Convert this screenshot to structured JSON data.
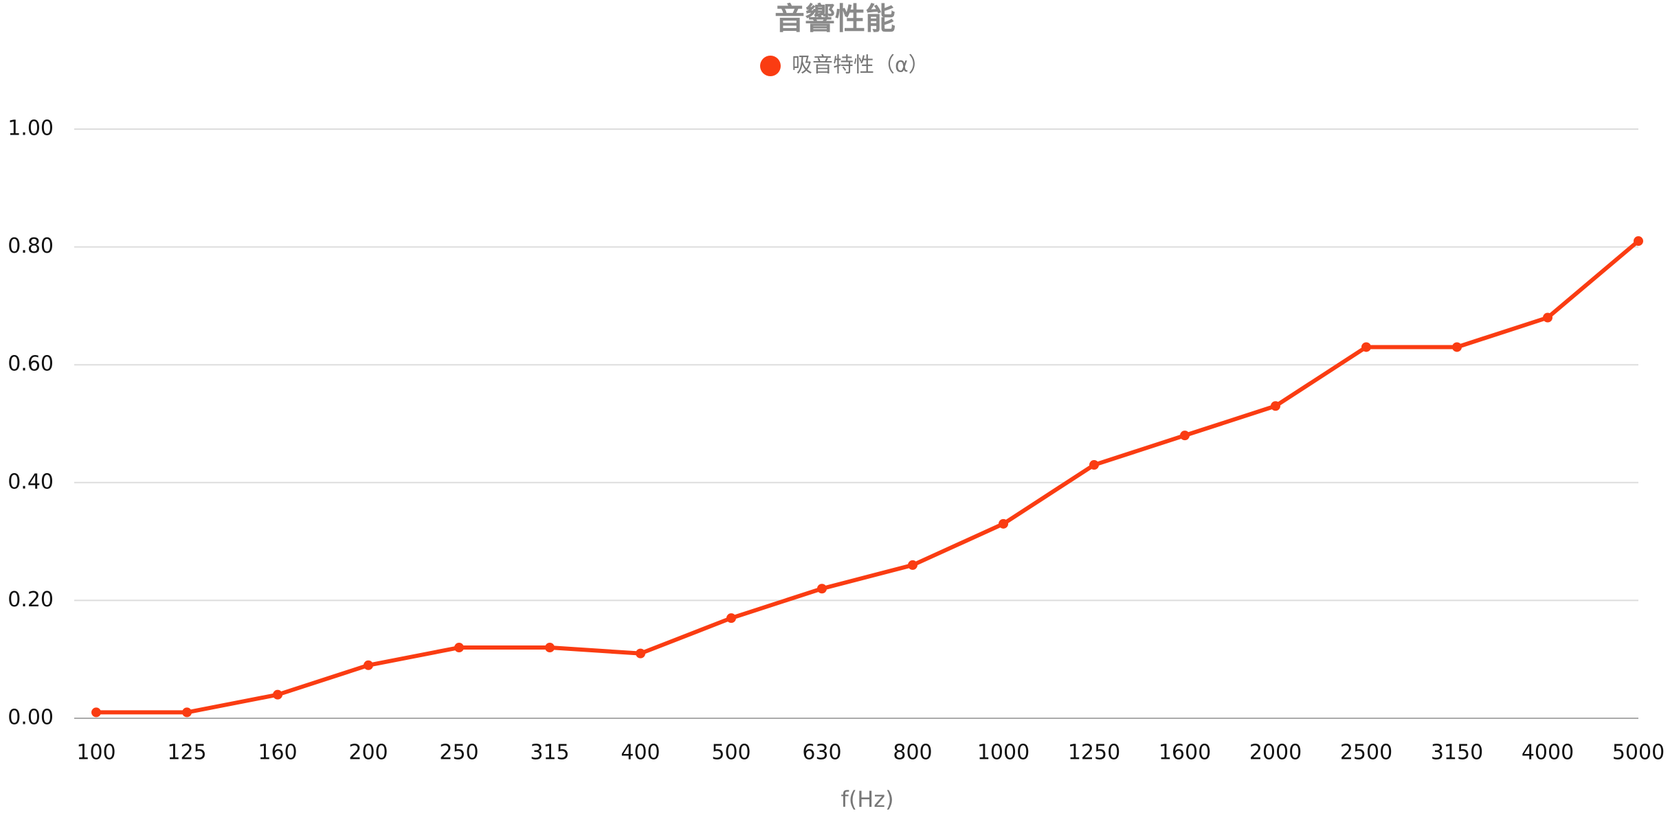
{
  "chart_data": {
    "type": "line",
    "title": "音響性能",
    "x_label": "f(Hz)",
    "categories": [
      "100",
      "125",
      "160",
      "200",
      "250",
      "315",
      "400",
      "500",
      "630",
      "800",
      "1000",
      "1250",
      "1600",
      "2000",
      "2500",
      "3150",
      "4000",
      "5000"
    ],
    "series": [
      {
        "name": "吸音特性（α）",
        "color": "#fa3c12",
        "values": [
          0.01,
          0.01,
          0.04,
          0.09,
          0.12,
          0.12,
          0.11,
          0.17,
          0.22,
          0.26,
          0.33,
          0.43,
          0.48,
          0.53,
          0.63,
          0.63,
          0.68,
          0.81
        ]
      }
    ],
    "ylim": [
      0,
      1
    ],
    "yticks": [
      {
        "value": 0,
        "label": "0.00"
      },
      {
        "value": 0.2,
        "label": "0.20"
      },
      {
        "value": 0.4,
        "label": "0.40"
      },
      {
        "value": 0.6,
        "label": "0.60"
      },
      {
        "value": 0.8,
        "label": "0.80"
      },
      {
        "value": 1,
        "label": "1.00"
      }
    ],
    "grid": true,
    "legend": "top"
  }
}
